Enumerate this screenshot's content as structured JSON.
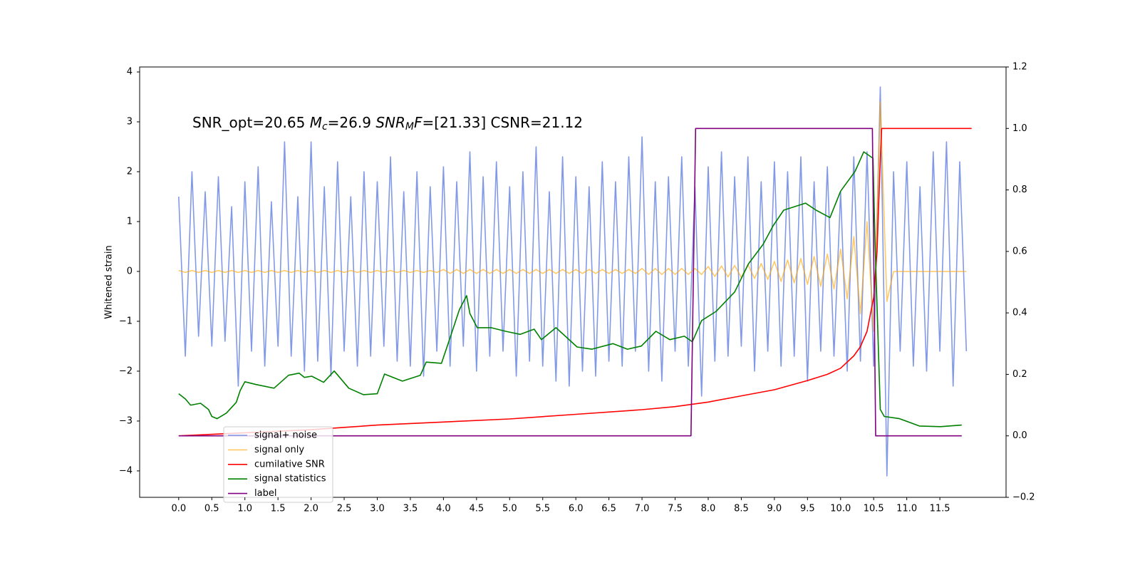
{
  "chart_data": {
    "type": "line",
    "ylabel": "Whitened strain",
    "annotation_parts": [
      "SNR_opt=20.65 ",
      "M",
      "c",
      "=26.9    ",
      "SNR",
      "M",
      "F",
      "=[21.33] CSNR=21.12"
    ],
    "xlim": [
      -0.59,
      12.5
    ],
    "ylim": [
      -4.53,
      4.1
    ],
    "y2lim": [
      -0.2,
      1.2
    ],
    "xticks": [
      {
        "value": 0,
        "label": "0.0"
      },
      {
        "value": 0.5,
        "label": "0.5"
      },
      {
        "value": 1,
        "label": "1.0"
      },
      {
        "value": 1.5,
        "label": "1.5"
      },
      {
        "value": 2,
        "label": "2.0"
      },
      {
        "value": 2.5,
        "label": "2.5"
      },
      {
        "value": 3,
        "label": "3.0"
      },
      {
        "value": 3.5,
        "label": "3.5"
      },
      {
        "value": 4,
        "label": "4.0"
      },
      {
        "value": 4.5,
        "label": "4.5"
      },
      {
        "value": 5,
        "label": "5.0"
      },
      {
        "value": 5.5,
        "label": "5.5"
      },
      {
        "value": 6,
        "label": "6.0"
      },
      {
        "value": 6.5,
        "label": "6.5"
      },
      {
        "value": 7,
        "label": "7.0"
      },
      {
        "value": 7.5,
        "label": "7.5"
      },
      {
        "value": 8,
        "label": "8.0"
      },
      {
        "value": 8.5,
        "label": "8.5"
      },
      {
        "value": 9,
        "label": "9.0"
      },
      {
        "value": 9.5,
        "label": "9.5"
      },
      {
        "value": 10,
        "label": "10.0"
      },
      {
        "value": 10.5,
        "label": "10.5"
      },
      {
        "value": 11,
        "label": "11.0"
      },
      {
        "value": 11.5,
        "label": "11.5"
      }
    ],
    "yticks": [
      {
        "value": -4,
        "label": "−4"
      },
      {
        "value": -3,
        "label": "−3"
      },
      {
        "value": -2,
        "label": "−2"
      },
      {
        "value": -1,
        "label": "−1"
      },
      0,
      1,
      2,
      3,
      4
    ],
    "y2ticks": [
      {
        "value": -0.2,
        "label": "−0.2"
      },
      {
        "value": 0,
        "label": "0.0"
      },
      0.2,
      0.4,
      0.6,
      0.8,
      {
        "value": 1,
        "label": "1.0"
      },
      1.2
    ],
    "legend": "lower left",
    "x": [
      0,
      0.1,
      0.2,
      0.3,
      0.4,
      0.5,
      0.6,
      0.7,
      0.8,
      0.9,
      1,
      1.1,
      1.2,
      1.3,
      1.4,
      1.5,
      1.6,
      1.7,
      1.8,
      1.9,
      2,
      2.1,
      2.2,
      2.3,
      2.4,
      2.5,
      2.6,
      2.7,
      2.8,
      2.9,
      3,
      3.1,
      3.2,
      3.3,
      3.4,
      3.5,
      3.6,
      3.7,
      3.8,
      3.9,
      4,
      4.1,
      4.2,
      4.3,
      4.4,
      4.5,
      4.6,
      4.7,
      4.8,
      4.9,
      5,
      5.1,
      5.2,
      5.3,
      5.4,
      5.5,
      5.6,
      5.7,
      5.8,
      5.9,
      6,
      6.1,
      6.2,
      6.3,
      6.4,
      6.5,
      6.6,
      6.7,
      6.8,
      6.9,
      7,
      7.1,
      7.2,
      7.3,
      7.4,
      7.5,
      7.6,
      7.7,
      7.8,
      7.9,
      8,
      8.1,
      8.2,
      8.3,
      8.4,
      8.5,
      8.6,
      8.7,
      8.8,
      8.9,
      9,
      9.1,
      9.2,
      9.3,
      9.4,
      9.5,
      9.6,
      9.7,
      9.8,
      9.9,
      10,
      10.1,
      10.2,
      10.3,
      10.4,
      10.5,
      10.6,
      10.7,
      10.8,
      10.9,
      11,
      11.1,
      11.2,
      11.3,
      11.4,
      11.5,
      11.6,
      11.7,
      11.8,
      11.9
    ],
    "series": [
      {
        "name": "signal+ noise",
        "color": "#7b93e6",
        "axis": "y",
        "values": [
          1.5,
          -1.7,
          2.0,
          -1.3,
          1.6,
          -1.5,
          1.9,
          -1.4,
          1.3,
          -2.3,
          1.8,
          -1.6,
          2.1,
          -1.9,
          1.4,
          -1.5,
          2.6,
          -1.7,
          1.5,
          -2.0,
          2.6,
          -1.8,
          1.7,
          -2.1,
          2.2,
          -1.6,
          1.5,
          -1.9,
          2.0,
          -1.7,
          1.8,
          -1.5,
          2.3,
          -1.8,
          1.6,
          -1.9,
          2.0,
          -2.1,
          1.7,
          -1.6,
          2.1,
          -1.9,
          1.8,
          -1.5,
          2.4,
          -2.0,
          1.9,
          -1.7,
          2.2,
          -1.6,
          1.7,
          -2.1,
          2.0,
          -1.8,
          2.5,
          -1.9,
          1.6,
          -2.2,
          2.3,
          -2.3,
          1.9,
          -2.0,
          1.7,
          -2.1,
          2.2,
          -1.8,
          1.8,
          -1.9,
          2.3,
          -1.6,
          2.7,
          -2.0,
          1.8,
          -2.2,
          1.9,
          -1.6,
          2.3,
          -1.9,
          1.7,
          -2.5,
          2.1,
          -1.8,
          2.4,
          -1.7,
          1.9,
          -1.5,
          2.3,
          -2.0,
          1.8,
          -1.6,
          2.2,
          -1.9,
          2.0,
          -1.7,
          2.3,
          -2.2,
          1.8,
          -1.6,
          2.1,
          -1.7,
          1.6,
          -2.0,
          2.3,
          -1.8,
          2.4,
          -1.9,
          3.7,
          -4.1,
          2.0,
          -1.6,
          2.2,
          -1.9,
          1.7,
          -2.0,
          2.4,
          -1.6,
          2.6,
          -2.3,
          2.2,
          -1.6
        ]
      },
      {
        "name": "signal only",
        "color": "#ffa500",
        "axis": "y",
        "values": [
          0.02,
          -0.02,
          0.02,
          -0.02,
          0.02,
          -0.02,
          0.02,
          -0.02,
          0.02,
          -0.02,
          0.02,
          -0.02,
          0.02,
          -0.02,
          0.02,
          -0.02,
          0.02,
          -0.02,
          0.02,
          -0.02,
          0.02,
          -0.02,
          0.02,
          -0.02,
          0.02,
          -0.02,
          0.02,
          -0.02,
          0.02,
          -0.02,
          0.02,
          -0.02,
          0.02,
          -0.02,
          0.02,
          -0.02,
          0.02,
          -0.02,
          0.02,
          -0.02,
          0.04,
          -0.04,
          0.04,
          -0.04,
          0.04,
          -0.04,
          0.04,
          -0.04,
          0.04,
          -0.04,
          0.04,
          -0.04,
          0.04,
          -0.04,
          0.04,
          -0.04,
          0.04,
          -0.04,
          0.04,
          -0.04,
          0.04,
          -0.04,
          0.04,
          -0.04,
          0.04,
          -0.04,
          0.04,
          -0.04,
          0.04,
          -0.04,
          0.06,
          -0.06,
          0.06,
          -0.06,
          0.06,
          -0.06,
          0.06,
          -0.06,
          0.06,
          -0.06,
          0.1,
          -0.1,
          0.11,
          -0.11,
          0.12,
          -0.12,
          0.14,
          -0.14,
          0.16,
          -0.16,
          0.2,
          -0.2,
          0.23,
          -0.23,
          0.26,
          -0.26,
          0.3,
          -0.3,
          0.35,
          -0.35,
          0.45,
          -0.55,
          0.7,
          -0.85,
          1.0,
          -1.2,
          3.4,
          -0.6,
          0,
          0,
          0,
          0,
          0,
          0,
          0,
          0,
          0,
          0,
          0,
          0
        ]
      },
      {
        "name": "cumilative SNR",
        "color": "#ff0000",
        "axis": "y2",
        "x": [
          0,
          1,
          2,
          3,
          4,
          5,
          6,
          7,
          7.5,
          8,
          8.5,
          9,
          9.5,
          9.8,
          10,
          10.2,
          10.3,
          10.4,
          10.5,
          10.55,
          10.6,
          10.62,
          11,
          11.98
        ],
        "values": [
          0,
          0.01,
          0.02,
          0.035,
          0.045,
          0.055,
          0.07,
          0.085,
          0.095,
          0.11,
          0.13,
          0.15,
          0.18,
          0.2,
          0.22,
          0.26,
          0.29,
          0.34,
          0.45,
          0.6,
          0.9,
          1.0,
          1.0,
          1.0
        ]
      },
      {
        "name": "signal statistics",
        "color": "#008000",
        "axis": "y2",
        "x": [
          0,
          0.1,
          0.18,
          0.33,
          0.45,
          0.5,
          0.58,
          0.72,
          0.87,
          0.93,
          1.0,
          1.17,
          1.44,
          1.66,
          1.82,
          1.9,
          2.01,
          2.19,
          2.35,
          2.57,
          2.79,
          3.0,
          3.11,
          3.38,
          3.65,
          3.74,
          3.97,
          4.08,
          4.24,
          4.35,
          4.4,
          4.51,
          4.72,
          4.94,
          5.16,
          5.37,
          5.48,
          5.7,
          6.02,
          6.24,
          6.56,
          6.78,
          6.99,
          7.21,
          7.42,
          7.64,
          7.76,
          7.9,
          8.12,
          8.4,
          8.61,
          8.83,
          8.98,
          9.14,
          9.47,
          9.63,
          9.84,
          10.0,
          10.22,
          10.35,
          10.49,
          10.52,
          10.6,
          10.66,
          10.89,
          11.19,
          11.51,
          11.83
        ],
        "values": [
          0.137,
          0.12,
          0.1,
          0.106,
          0.086,
          0.063,
          0.056,
          0.074,
          0.109,
          0.148,
          0.176,
          0.167,
          0.155,
          0.197,
          0.204,
          0.19,
          0.194,
          0.174,
          0.211,
          0.155,
          0.134,
          0.137,
          0.201,
          0.178,
          0.197,
          0.24,
          0.236,
          0.306,
          0.41,
          0.456,
          0.398,
          0.352,
          0.352,
          0.34,
          0.33,
          0.347,
          0.313,
          0.352,
          0.289,
          0.282,
          0.3,
          0.282,
          0.292,
          0.34,
          0.313,
          0.324,
          0.306,
          0.375,
          0.405,
          0.468,
          0.56,
          0.623,
          0.683,
          0.734,
          0.757,
          0.734,
          0.71,
          0.796,
          0.861,
          0.924,
          0.903,
          0.63,
          0.086,
          0.063,
          0.056,
          0.032,
          0.03,
          0.035
        ]
      },
      {
        "name": "label",
        "color": "#800080",
        "axis": "y2",
        "x": [
          0,
          7.74,
          7.81,
          10.48,
          10.53,
          11.83
        ],
        "values": [
          0,
          0,
          1,
          1,
          0,
          0
        ]
      }
    ]
  }
}
